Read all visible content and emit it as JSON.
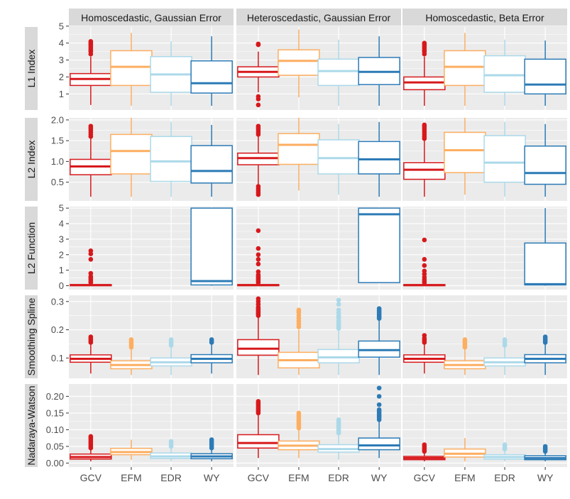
{
  "chart_data": {
    "type": "boxplot",
    "layout": "faceted grid (rows = estimation metric, columns = simulation scenario)",
    "columns": [
      "Homoscedastic, Gaussian Error",
      "Heteroscedastic, Gaussian Error",
      "Homoscedastic, Beta Error"
    ],
    "rows": [
      {
        "label": "L1 Index",
        "ylim": [
          0.05,
          4.95
        ],
        "ticks": [
          1,
          2,
          3,
          4,
          5
        ]
      },
      {
        "label": "L2 Index",
        "ylim": [
          0.05,
          2.05
        ],
        "ticks": [
          0.5,
          1.0,
          1.5,
          2.0
        ],
        "tick_labels": [
          "0.5",
          "1.0",
          "1.5",
          "2.0"
        ]
      },
      {
        "label": "L2 Function",
        "ylim": [
          -0.25,
          5.1
        ],
        "ticks": [
          0,
          1,
          2,
          3,
          4,
          5
        ]
      },
      {
        "label": "Smoothing Spline",
        "ylim": [
          0.028,
          0.322
        ],
        "ticks": [
          0.1,
          0.2,
          0.3
        ],
        "tick_labels": [
          "0.1",
          "0.2",
          "0.3"
        ]
      },
      {
        "label": "Nadaraya-Watson",
        "ylim": [
          -0.012,
          0.237
        ],
        "ticks": [
          0.0,
          0.05,
          0.1,
          0.15,
          0.2
        ],
        "tick_labels": [
          "0.00",
          "0.05",
          "0.10",
          "0.15",
          "0.20"
        ]
      }
    ],
    "categories": [
      "GCV",
      "EFM",
      "EDR",
      "WY"
    ],
    "colors": {
      "GCV": "#d7191c",
      "EFM": "#fdae61",
      "EDR": "#abd9e9",
      "WY": "#2c7bb6"
    },
    "panel_background": "#ebebeb",
    "strip_background": "#d9d9d9",
    "grid_color": "#ffffff",
    "boxes": [
      [
        [
          {
            "min": 0.35,
            "q1": 1.5,
            "median": 1.88,
            "q3": 2.2,
            "max": 3.2,
            "outliers": [
              3.35,
              3.5,
              3.6,
              3.7,
              3.8,
              3.9,
              4.0,
              4.1
            ]
          },
          {
            "min": 0.3,
            "q1": 1.5,
            "median": 2.6,
            "q3": 3.55,
            "max": 4.6,
            "outliers": []
          },
          {
            "min": 0.3,
            "q1": 1.1,
            "median": 2.15,
            "q3": 3.2,
            "max": 4.1,
            "outliers": []
          },
          {
            "min": 0.3,
            "q1": 1.05,
            "median": 1.63,
            "q3": 2.95,
            "max": 4.4,
            "outliers": []
          }
        ],
        [
          {
            "min": 1.1,
            "q1": 2.0,
            "median": 2.3,
            "q3": 2.6,
            "max": 3.5,
            "outliers": [
              0.35,
              0.7,
              0.85,
              3.9,
              3.95
            ]
          },
          {
            "min": 0.8,
            "q1": 2.1,
            "median": 2.95,
            "q3": 3.6,
            "max": 4.8,
            "outliers": []
          },
          {
            "min": 0.3,
            "q1": 1.5,
            "median": 2.35,
            "q3": 3.05,
            "max": 4.2,
            "outliers": []
          },
          {
            "min": 0.3,
            "q1": 1.55,
            "median": 2.3,
            "q3": 3.15,
            "max": 4.4,
            "outliers": []
          }
        ],
        [
          {
            "min": 0.3,
            "q1": 1.25,
            "median": 1.68,
            "q3": 2.0,
            "max": 3.2,
            "outliers": [
              3.35,
              3.5,
              3.6,
              3.7,
              3.8,
              3.9,
              4.0
            ]
          },
          {
            "min": 0.3,
            "q1": 1.5,
            "median": 2.6,
            "q3": 3.55,
            "max": 4.6,
            "outliers": []
          },
          {
            "min": 0.3,
            "q1": 1.1,
            "median": 2.1,
            "q3": 3.25,
            "max": 4.2,
            "outliers": []
          },
          {
            "min": 0.3,
            "q1": 1.0,
            "median": 1.55,
            "q3": 3.05,
            "max": 4.15,
            "outliers": []
          }
        ]
      ],
      [
        [
          {
            "min": 0.15,
            "q1": 0.68,
            "median": 0.88,
            "q3": 1.05,
            "max": 1.55,
            "outliers": [
              1.6,
              1.65,
              1.7,
              1.75,
              1.8,
              1.85
            ]
          },
          {
            "min": 0.15,
            "q1": 0.7,
            "median": 1.25,
            "q3": 1.65,
            "max": 2.05,
            "outliers": []
          },
          {
            "min": 0.15,
            "q1": 0.52,
            "median": 1.0,
            "q3": 1.6,
            "max": 1.95,
            "outliers": []
          },
          {
            "min": 0.15,
            "q1": 0.48,
            "median": 0.77,
            "q3": 1.38,
            "max": 1.88,
            "outliers": []
          }
        ],
        [
          {
            "min": 0.45,
            "q1": 0.92,
            "median": 1.08,
            "q3": 1.2,
            "max": 1.6,
            "outliers": [
              0.2,
              0.25,
              0.3,
              0.35,
              0.4,
              1.65,
              1.7,
              1.75,
              1.8,
              1.85
            ]
          },
          {
            "min": 0.3,
            "q1": 0.93,
            "median": 1.4,
            "q3": 1.67,
            "max": 2.05,
            "outliers": []
          },
          {
            "min": 0.2,
            "q1": 0.7,
            "median": 1.08,
            "q3": 1.52,
            "max": 1.9,
            "outliers": []
          },
          {
            "min": 0.15,
            "q1": 0.7,
            "median": 1.05,
            "q3": 1.48,
            "max": 1.95,
            "outliers": []
          }
        ],
        [
          {
            "min": 0.15,
            "q1": 0.57,
            "median": 0.8,
            "q3": 0.97,
            "max": 1.5,
            "outliers": [
              1.55,
              1.6,
              1.65,
              1.7,
              1.75,
              1.8,
              1.85,
              1.88
            ]
          },
          {
            "min": 0.2,
            "q1": 0.73,
            "median": 1.27,
            "q3": 1.7,
            "max": 2.05,
            "outliers": []
          },
          {
            "min": 0.15,
            "q1": 0.5,
            "median": 0.97,
            "q3": 1.62,
            "max": 1.95,
            "outliers": []
          },
          {
            "min": 0.15,
            "q1": 0.45,
            "median": 0.72,
            "q3": 1.37,
            "max": 1.9,
            "outliers": []
          }
        ]
      ],
      [
        [
          {
            "min": 0.0,
            "q1": 0.02,
            "median": 0.04,
            "q3": 0.07,
            "max": 0.12,
            "outliers": [
              0.2,
              0.3,
              0.4,
              0.5,
              0.6,
              0.8,
              1.7,
              2.05,
              2.25
            ]
          },
          null,
          null,
          {
            "min": 0.0,
            "q1": 0.05,
            "median": 0.3,
            "q3": 5.0,
            "max": 5.0,
            "outliers": []
          }
        ],
        [
          {
            "min": 0.0,
            "q1": 0.02,
            "median": 0.04,
            "q3": 0.07,
            "max": 0.12,
            "outliers": [
              0.2,
              0.3,
              0.4,
              0.5,
              0.6,
              0.7,
              0.9,
              1.4,
              1.7,
              2.0,
              2.4,
              3.55
            ]
          },
          null,
          null,
          {
            "min": 0.2,
            "q1": 0.2,
            "median": 4.6,
            "q3": 5.0,
            "max": 5.0,
            "outliers": []
          }
        ],
        [
          {
            "min": 0.0,
            "q1": 0.02,
            "median": 0.04,
            "q3": 0.07,
            "max": 0.12,
            "outliers": [
              0.2,
              0.3,
              0.4,
              0.55,
              0.75,
              0.95,
              1.3,
              1.7,
              2.95
            ]
          },
          null,
          null,
          {
            "min": 0.0,
            "q1": 0.05,
            "median": 0.1,
            "q3": 2.75,
            "max": 5.0,
            "outliers": []
          }
        ]
      ],
      [
        [
          {
            "min": 0.045,
            "q1": 0.085,
            "median": 0.097,
            "q3": 0.111,
            "max": 0.148,
            "outliers": [
              0.155,
              0.16,
              0.165,
              0.17,
              0.175
            ]
          },
          {
            "min": 0.04,
            "q1": 0.062,
            "median": 0.075,
            "q3": 0.09,
            "max": 0.13,
            "outliers": [
              0.138,
              0.145,
              0.15,
              0.155,
              0.16,
              0.165
            ]
          },
          {
            "min": 0.04,
            "q1": 0.072,
            "median": 0.085,
            "q3": 0.1,
            "max": 0.14,
            "outliers": [
              0.145,
              0.15,
              0.155,
              0.16,
              0.165
            ]
          },
          {
            "min": 0.045,
            "q1": 0.083,
            "median": 0.097,
            "q3": 0.112,
            "max": 0.15,
            "outliers": [
              0.155,
              0.16,
              0.165
            ]
          }
        ],
        [
          {
            "min": 0.04,
            "q1": 0.11,
            "median": 0.133,
            "q3": 0.165,
            "max": 0.245,
            "outliers": [
              0.25,
              0.255,
              0.26,
              0.265,
              0.27,
              0.275,
              0.28,
              0.29,
              0.3,
              0.31
            ]
          },
          {
            "min": 0.04,
            "q1": 0.065,
            "median": 0.092,
            "q3": 0.12,
            "max": 0.2,
            "outliers": [
              0.21,
              0.22,
              0.23,
              0.24,
              0.25,
              0.26,
              0.265,
              0.27
            ]
          },
          {
            "min": 0.04,
            "q1": 0.083,
            "median": 0.102,
            "q3": 0.13,
            "max": 0.2,
            "outliers": [
              0.205,
              0.21,
              0.215,
              0.22,
              0.225,
              0.23,
              0.24,
              0.245,
              0.25,
              0.26,
              0.27,
              0.29,
              0.305
            ]
          },
          {
            "min": 0.04,
            "q1": 0.103,
            "median": 0.128,
            "q3": 0.16,
            "max": 0.235,
            "outliers": [
              0.24,
              0.245,
              0.25,
              0.255,
              0.26,
              0.265,
              0.27,
              0.275
            ]
          }
        ],
        [
          {
            "min": 0.045,
            "q1": 0.085,
            "median": 0.097,
            "q3": 0.111,
            "max": 0.148,
            "outliers": [
              0.155,
              0.16,
              0.165,
              0.17,
              0.18
            ]
          },
          {
            "min": 0.04,
            "q1": 0.062,
            "median": 0.075,
            "q3": 0.09,
            "max": 0.13,
            "outliers": [
              0.138,
              0.145,
              0.15,
              0.155,
              0.16,
              0.165
            ]
          },
          {
            "min": 0.04,
            "q1": 0.072,
            "median": 0.085,
            "q3": 0.1,
            "max": 0.14,
            "outliers": [
              0.145,
              0.15,
              0.155,
              0.16,
              0.165
            ]
          },
          {
            "min": 0.04,
            "q1": 0.083,
            "median": 0.097,
            "q3": 0.112,
            "max": 0.15,
            "outliers": [
              0.155,
              0.16,
              0.165,
              0.17,
              0.175
            ]
          }
        ]
      ],
      [
        [
          {
            "min": 0.005,
            "q1": 0.012,
            "median": 0.018,
            "q3": 0.027,
            "max": 0.042,
            "outliers": [
              0.045,
              0.05,
              0.055,
              0.06,
              0.065,
              0.07,
              0.075,
              0.08
            ]
          },
          {
            "min": 0.01,
            "q1": 0.025,
            "median": 0.033,
            "q3": 0.044,
            "max": 0.07,
            "outliers": []
          },
          {
            "min": 0.005,
            "q1": 0.014,
            "median": 0.02,
            "q3": 0.03,
            "max": 0.045,
            "outliers": [
              0.05,
              0.055,
              0.06,
              0.065
            ]
          },
          {
            "min": 0.005,
            "q1": 0.013,
            "median": 0.02,
            "q3": 0.028,
            "max": 0.042,
            "outliers": [
              0.045,
              0.05,
              0.055,
              0.06,
              0.065,
              0.07
            ]
          }
        ],
        [
          {
            "min": 0.015,
            "q1": 0.045,
            "median": 0.06,
            "q3": 0.085,
            "max": 0.145,
            "outliers": [
              0.15,
              0.155,
              0.16,
              0.165,
              0.17,
              0.175,
              0.18,
              0.185
            ]
          },
          {
            "min": 0.015,
            "q1": 0.04,
            "median": 0.052,
            "q3": 0.066,
            "max": 0.1,
            "outliers": [
              0.105,
              0.11,
              0.115,
              0.12,
              0.125,
              0.13,
              0.135,
              0.14,
              0.145,
              0.15
            ]
          },
          {
            "min": 0.01,
            "q1": 0.033,
            "median": 0.042,
            "q3": 0.055,
            "max": 0.085,
            "outliers": [
              0.09,
              0.095,
              0.1,
              0.105,
              0.11,
              0.115,
              0.12,
              0.125,
              0.13
            ]
          },
          {
            "min": 0.015,
            "q1": 0.04,
            "median": 0.053,
            "q3": 0.075,
            "max": 0.125,
            "outliers": [
              0.13,
              0.135,
              0.14,
              0.145,
              0.15,
              0.155,
              0.16,
              0.175,
              0.2,
              0.225
            ]
          }
        ],
        [
          {
            "min": 0.005,
            "q1": 0.01,
            "median": 0.015,
            "q3": 0.02,
            "max": 0.03,
            "outliers": [
              0.035,
              0.04,
              0.045,
              0.05,
              0.055
            ]
          },
          {
            "min": 0.005,
            "q1": 0.018,
            "median": 0.028,
            "q3": 0.042,
            "max": 0.075,
            "outliers": []
          },
          {
            "min": 0.005,
            "q1": 0.012,
            "median": 0.018,
            "q3": 0.025,
            "max": 0.038,
            "outliers": [
              0.042,
              0.045,
              0.05,
              0.055
            ]
          },
          {
            "min": 0.005,
            "q1": 0.01,
            "median": 0.015,
            "q3": 0.022,
            "max": 0.032,
            "outliers": [
              0.035,
              0.04,
              0.045,
              0.05
            ]
          }
        ]
      ]
    ]
  }
}
